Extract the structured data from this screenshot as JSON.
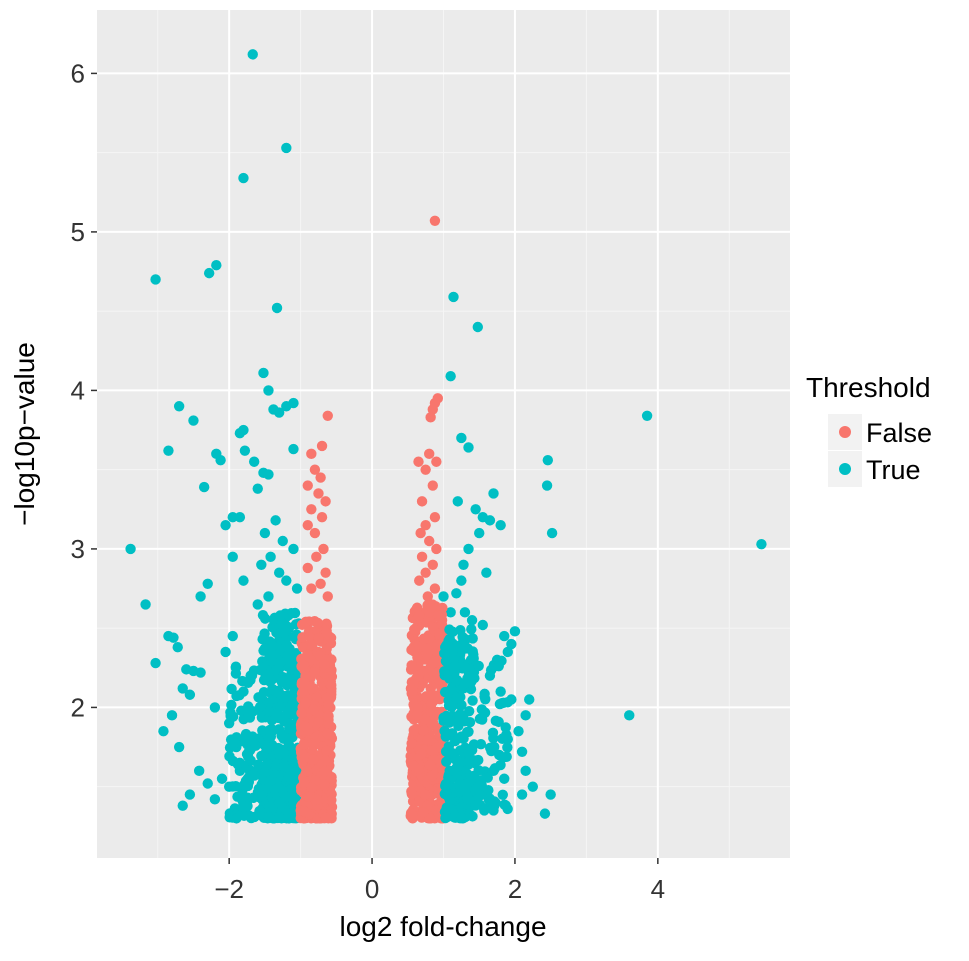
{
  "chart_data": {
    "type": "scatter",
    "title": "",
    "xlabel": "log2 fold-change",
    "ylabel": "−log10p−value",
    "xlim": [
      -3.85,
      5.85
    ],
    "ylim": [
      1.05,
      6.4
    ],
    "x_ticks": [
      -2,
      0,
      2,
      4
    ],
    "x_tick_labels": [
      "−2",
      "0",
      "2",
      "4"
    ],
    "y_ticks": [
      2,
      3,
      4,
      5,
      6
    ],
    "y_tick_labels": [
      "2",
      "3",
      "4",
      "5",
      "6"
    ],
    "grid": true,
    "legend": {
      "title": "Threshold",
      "placement": "right",
      "entries": [
        {
          "label": "False",
          "color": "#F8766D"
        },
        {
          "label": "True",
          "color": "#00BFC4"
        }
      ]
    },
    "panel_background": "#EBEBEB",
    "series": [
      {
        "name": "False",
        "color": "#F8766D",
        "points": [
          [
            0.88,
            5.07
          ],
          [
            0.85,
            3.88
          ],
          [
            0.88,
            3.92
          ],
          [
            0.92,
            3.95
          ],
          [
            0.82,
            3.83
          ],
          [
            -0.62,
            3.84
          ],
          [
            -0.7,
            3.65
          ],
          [
            -0.85,
            3.6
          ],
          [
            -0.8,
            3.5
          ],
          [
            -0.72,
            3.45
          ],
          [
            -0.9,
            3.4
          ],
          [
            -0.75,
            3.35
          ],
          [
            -0.65,
            3.3
          ],
          [
            -0.85,
            3.25
          ],
          [
            -0.7,
            3.2
          ],
          [
            -0.9,
            3.15
          ],
          [
            -0.8,
            3.1
          ],
          [
            -0.68,
            3.0
          ],
          [
            -0.78,
            2.95
          ],
          [
            -0.9,
            2.88
          ],
          [
            -0.65,
            2.85
          ],
          [
            -0.72,
            2.78
          ],
          [
            -0.85,
            2.75
          ],
          [
            -0.62,
            2.7
          ],
          [
            0.65,
            3.55
          ],
          [
            0.8,
            3.6
          ],
          [
            0.9,
            3.55
          ],
          [
            0.75,
            3.5
          ],
          [
            0.85,
            3.4
          ],
          [
            0.7,
            3.3
          ],
          [
            0.88,
            3.2
          ],
          [
            0.75,
            3.15
          ],
          [
            0.68,
            3.1
          ],
          [
            0.8,
            3.05
          ],
          [
            0.9,
            3.0
          ],
          [
            0.7,
            2.95
          ],
          [
            0.85,
            2.9
          ],
          [
            0.75,
            2.85
          ],
          [
            0.66,
            2.8
          ],
          [
            0.88,
            2.75
          ],
          [
            0.78,
            2.7
          ]
        ]
      },
      {
        "name": "True",
        "color": "#00BFC4",
        "points": [
          [
            -1.67,
            6.12
          ],
          [
            -1.2,
            5.53
          ],
          [
            -1.8,
            5.34
          ],
          [
            -3.03,
            4.7
          ],
          [
            -2.18,
            4.79
          ],
          [
            -2.28,
            4.74
          ],
          [
            -1.33,
            4.52
          ],
          [
            -1.52,
            4.11
          ],
          [
            -1.45,
            4.0
          ],
          [
            -1.38,
            3.88
          ],
          [
            -1.3,
            3.86
          ],
          [
            -1.2,
            3.9
          ],
          [
            -1.1,
            3.92
          ],
          [
            -2.7,
            3.9
          ],
          [
            -2.5,
            3.81
          ],
          [
            -1.8,
            3.75
          ],
          [
            -1.85,
            3.73
          ],
          [
            -1.78,
            3.62
          ],
          [
            -2.18,
            3.6
          ],
          [
            -2.12,
            3.56
          ],
          [
            -1.65,
            3.55
          ],
          [
            -1.52,
            3.48
          ],
          [
            -1.45,
            3.47
          ],
          [
            -2.85,
            3.62
          ],
          [
            -2.35,
            3.39
          ],
          [
            -1.6,
            3.38
          ],
          [
            -1.1,
            3.63
          ],
          [
            -1.95,
            3.2
          ],
          [
            -1.85,
            3.2
          ],
          [
            -2.05,
            3.15
          ],
          [
            -1.35,
            3.18
          ],
          [
            -1.5,
            3.1
          ],
          [
            -1.25,
            3.05
          ],
          [
            -1.1,
            3.0
          ],
          [
            -1.42,
            2.95
          ],
          [
            -1.55,
            2.9
          ],
          [
            -1.3,
            2.85
          ],
          [
            -1.2,
            2.8
          ],
          [
            -1.95,
            2.95
          ],
          [
            -1.8,
            2.8
          ],
          [
            -2.3,
            2.78
          ],
          [
            -2.4,
            2.7
          ],
          [
            -1.45,
            2.7
          ],
          [
            -1.6,
            2.65
          ],
          [
            -1.05,
            2.75
          ],
          [
            -3.38,
            3.0
          ],
          [
            -3.17,
            2.65
          ],
          [
            -3.03,
            2.28
          ],
          [
            -2.85,
            2.45
          ],
          [
            -2.78,
            2.44
          ],
          [
            -2.72,
            2.38
          ],
          [
            -2.6,
            2.24
          ],
          [
            -2.5,
            2.23
          ],
          [
            -2.4,
            2.22
          ],
          [
            -2.65,
            2.12
          ],
          [
            -2.55,
            2.08
          ],
          [
            -2.8,
            1.95
          ],
          [
            -2.92,
            1.85
          ],
          [
            -2.7,
            1.75
          ],
          [
            -2.42,
            1.6
          ],
          [
            -2.3,
            1.52
          ],
          [
            -2.55,
            1.45
          ],
          [
            -2.65,
            1.38
          ],
          [
            -2.2,
            1.42
          ],
          [
            -2.1,
            1.55
          ],
          [
            -2.0,
            1.5
          ],
          [
            -1.95,
            2.45
          ],
          [
            -2.05,
            2.35
          ],
          [
            -2.2,
            2.0
          ],
          [
            -2.0,
            1.9
          ],
          [
            -1.9,
            1.75
          ],
          [
            -1.85,
            1.6
          ],
          [
            -1.75,
            1.4
          ],
          [
            -1.7,
            2.2
          ],
          [
            -1.8,
            2.1
          ],
          [
            2.46,
            3.56
          ],
          [
            2.45,
            3.4
          ],
          [
            2.52,
            3.1
          ],
          [
            1.25,
            3.7
          ],
          [
            1.35,
            3.64
          ],
          [
            1.1,
            4.09
          ],
          [
            1.14,
            4.59
          ],
          [
            1.48,
            4.4
          ],
          [
            1.7,
            3.35
          ],
          [
            1.2,
            3.3
          ],
          [
            1.45,
            3.25
          ],
          [
            1.55,
            3.2
          ],
          [
            1.65,
            3.18
          ],
          [
            1.8,
            3.15
          ],
          [
            1.5,
            3.1
          ],
          [
            1.35,
            3.0
          ],
          [
            1.28,
            2.9
          ],
          [
            1.6,
            2.85
          ],
          [
            1.25,
            2.8
          ],
          [
            1.18,
            2.72
          ],
          [
            1.0,
            2.7
          ],
          [
            1.1,
            2.6
          ],
          [
            1.3,
            2.6
          ],
          [
            1.4,
            2.55
          ],
          [
            1.55,
            2.52
          ],
          [
            1.85,
            2.45
          ],
          [
            1.95,
            2.4
          ],
          [
            2.0,
            2.48
          ],
          [
            1.9,
            2.35
          ],
          [
            1.75,
            2.3
          ],
          [
            1.65,
            2.2
          ],
          [
            1.8,
            2.1
          ],
          [
            1.95,
            2.05
          ],
          [
            2.2,
            2.05
          ],
          [
            2.15,
            1.95
          ],
          [
            2.05,
            1.85
          ],
          [
            1.9,
            1.8
          ],
          [
            1.78,
            1.7
          ],
          [
            1.7,
            1.6
          ],
          [
            1.85,
            1.55
          ],
          [
            2.1,
            1.72
          ],
          [
            2.15,
            1.6
          ],
          [
            2.25,
            1.5
          ],
          [
            2.1,
            1.45
          ],
          [
            2.5,
            1.45
          ],
          [
            2.42,
            1.33
          ],
          [
            1.7,
            1.35
          ],
          [
            1.6,
            1.45
          ],
          [
            1.5,
            1.5
          ],
          [
            1.4,
            1.42
          ],
          [
            3.6,
            1.95
          ],
          [
            3.85,
            3.84
          ],
          [
            5.45,
            3.03
          ]
        ]
      }
    ]
  }
}
